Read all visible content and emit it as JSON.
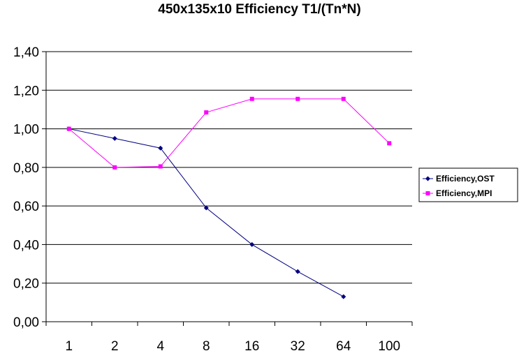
{
  "chart_data": {
    "type": "line",
    "title": "450x135x10 Efficiency T1/(Tn*N)",
    "categories": [
      "1",
      "2",
      "4",
      "8",
      "16",
      "32",
      "64",
      "100"
    ],
    "ylim": [
      0,
      1.4
    ],
    "yticks": [
      "0,00",
      "0,20",
      "0,40",
      "0,60",
      "0,80",
      "1,00",
      "1,20",
      "1,40"
    ],
    "ystep": 0.2,
    "grid": true,
    "legend_position": "right",
    "series": [
      {
        "name": "Efficiency,OST",
        "color": "#000080",
        "marker": "diamond",
        "values": [
          1.0,
          0.95,
          0.9,
          0.59,
          0.4,
          0.26,
          0.13,
          null
        ]
      },
      {
        "name": "Efficiency,MPI",
        "color": "#ff00ff",
        "marker": "square",
        "values": [
          1.0,
          0.8,
          0.805,
          1.085,
          1.155,
          1.155,
          1.155,
          0.925
        ]
      }
    ]
  }
}
